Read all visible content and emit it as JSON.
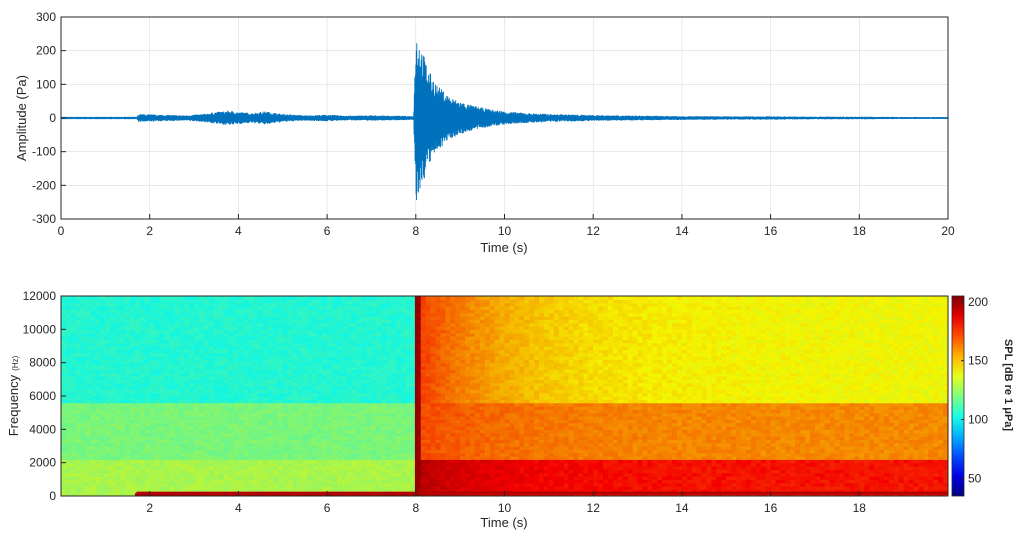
{
  "colors": {
    "waveform": "#0072bd",
    "axis": "#262626",
    "grid": "#dcdcdc",
    "background": "#ffffff"
  },
  "chart_data": [
    {
      "type": "line",
      "title": "",
      "xlabel": "Time (s)",
      "ylabel": "Amplitude (Pa)",
      "xlim": [
        0,
        20
      ],
      "ylim": [
        -300,
        300
      ],
      "xticks": [
        "0",
        "2",
        "4",
        "6",
        "8",
        "10",
        "12",
        "14",
        "16",
        "18",
        "20"
      ],
      "yticks": [
        "300",
        "200",
        "100",
        "0",
        "-100",
        "-200",
        "-300"
      ],
      "grid": true,
      "series": [
        {
          "envelope_time_s": [
            0,
            1.7,
            1.75,
            2.2,
            2.8,
            3.2,
            3.5,
            3.8,
            4.0,
            4.3,
            4.6,
            5.0,
            5.5,
            6.0,
            6.5,
            7.0,
            7.5,
            7.95,
            8.0,
            8.05,
            8.15,
            8.3,
            8.5,
            8.8,
            9.2,
            9.6,
            10.0,
            10.5,
            11.0,
            12.0,
            13.0,
            14.0,
            15.0,
            16.0,
            17.0,
            18.0,
            19.0,
            20.0
          ],
          "envelope_amplitude_pa": [
            1,
            1,
            12,
            10,
            8,
            12,
            18,
            22,
            18,
            15,
            20,
            12,
            8,
            10,
            7,
            8,
            7,
            6,
            255,
            245,
            200,
            140,
            95,
            60,
            40,
            28,
            20,
            15,
            12,
            9,
            7,
            6,
            5,
            5,
            4,
            4,
            3,
            3
          ]
        }
      ]
    },
    {
      "type": "heatmap",
      "title": "",
      "xlabel": "Time (s)",
      "ylabel": "Frequency",
      "ylabel_unit": "(Hz)",
      "xlim": [
        0,
        20
      ],
      "ylim": [
        0,
        12000
      ],
      "xticks": [
        "2",
        "4",
        "6",
        "8",
        "10",
        "12",
        "14",
        "16",
        "18"
      ],
      "yticks": [
        "12000",
        "10000",
        "8000",
        "6000",
        "4000",
        "2000",
        "0"
      ],
      "colormap": "jet",
      "colorbar": {
        "label": "SPL [dB re 1 μPa]",
        "clim": [
          35,
          205
        ],
        "ticks": [
          "200",
          "150",
          "100",
          "50"
        ]
      },
      "spl_regions_db": {
        "background_before_8s_high_freq": 105,
        "background_before_8s_mid_freq": 120,
        "background_before_8s_low_freq": 128,
        "tonal_line_0_to_200hz_from_1.7s": 195,
        "onset_at_8s": 200,
        "after_8s_high_freq_decay_start": 175,
        "after_8s_high_freq_decay_end": 140,
        "after_8s_mid_freq": 160,
        "after_8s_low_freq": 180
      }
    }
  ]
}
